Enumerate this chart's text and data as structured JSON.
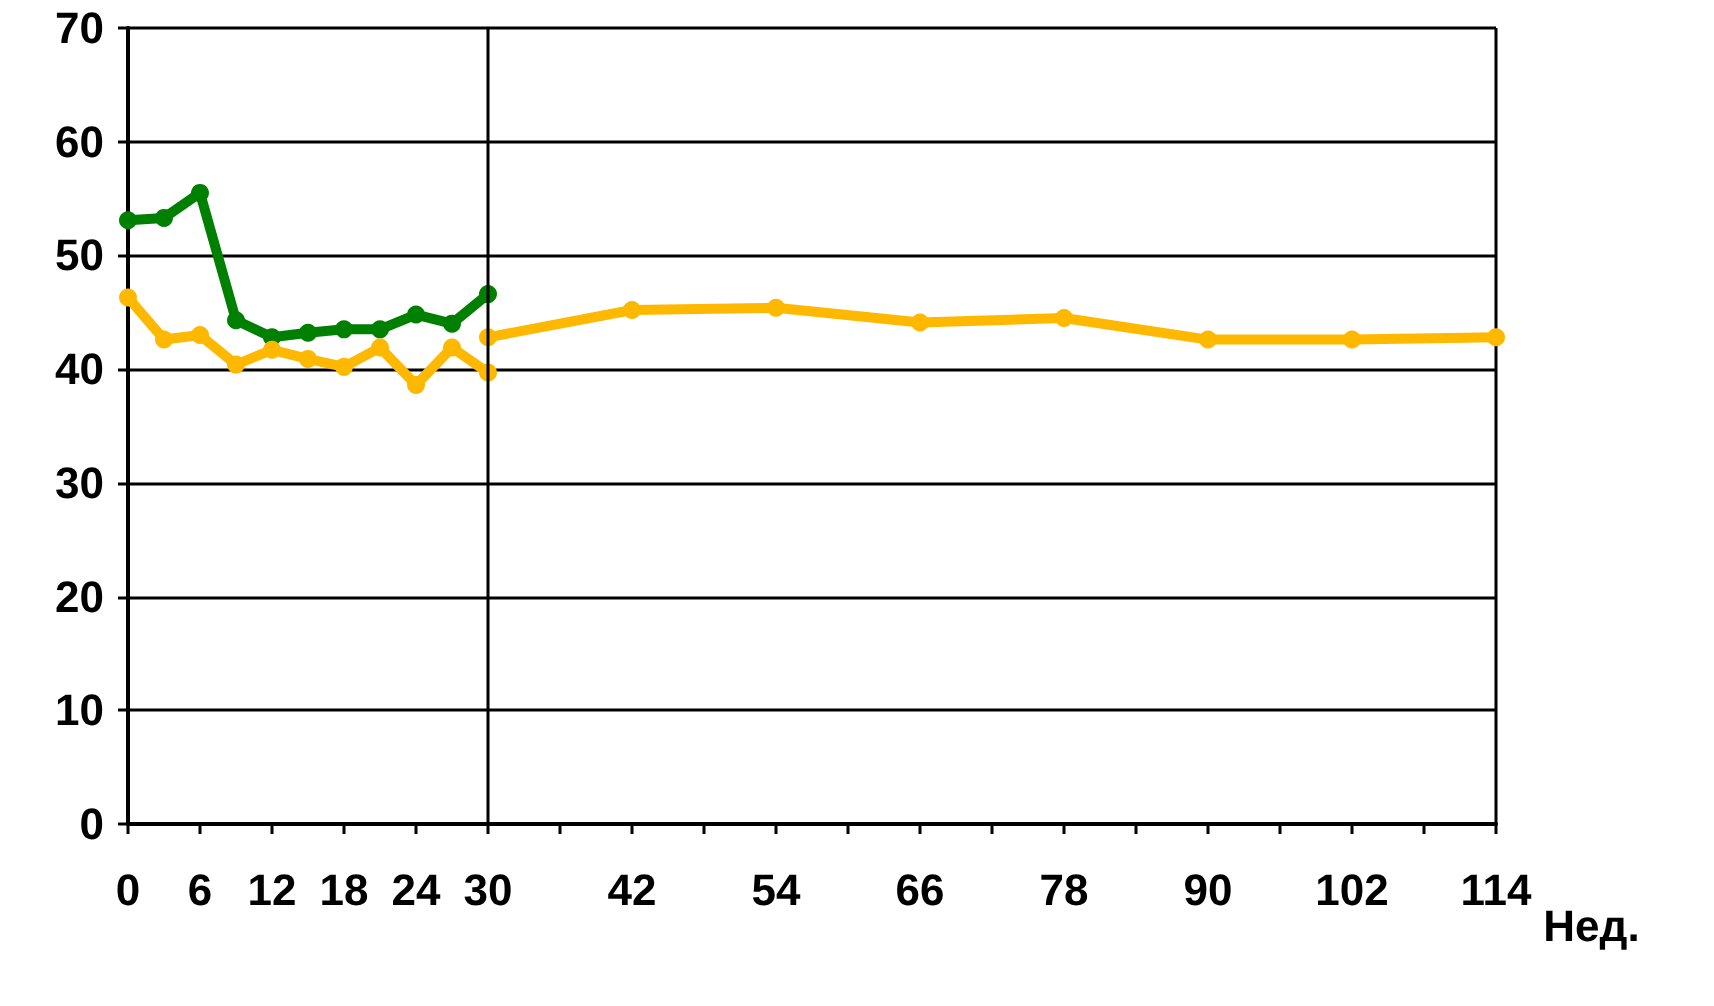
{
  "chart_data": {
    "type": "line",
    "xlabel": "Нед.",
    "series": [
      {
        "color": "#008000",
        "x": [
          0,
          3,
          6,
          9,
          12,
          15,
          18,
          21,
          24,
          27,
          30
        ],
        "values": [
          53.1,
          53.3,
          55.5,
          44.3,
          42.8,
          43.2,
          43.5,
          43.5,
          44.8,
          44.0,
          46.6
        ]
      },
      {
        "color": "#ffb800",
        "x": [
          0,
          3,
          6,
          9,
          12,
          15,
          18,
          21,
          24,
          27,
          30
        ],
        "values": [
          46.3,
          42.6,
          43.0,
          40.4,
          41.7,
          40.9,
          40.2,
          41.9,
          38.6,
          41.9,
          39.7
        ]
      },
      {
        "color": "#ffb800",
        "x": [
          30,
          42,
          54,
          66,
          78,
          90,
          102,
          114
        ],
        "values": [
          42.8,
          45.2,
          45.4,
          44.1,
          44.5,
          42.6,
          42.6,
          42.8
        ]
      }
    ],
    "xlim": [
      0,
      114
    ],
    "xticks": [
      0,
      6,
      12,
      18,
      24,
      30,
      {
        "value": 36,
        "label": null
      },
      42,
      {
        "value": 48,
        "label": null
      },
      54,
      {
        "value": 60,
        "label": null
      },
      66,
      {
        "value": 72,
        "label": null
      },
      78,
      {
        "value": 84,
        "label": null
      },
      90,
      {
        "value": 96,
        "label": null
      },
      102,
      {
        "value": 108,
        "label": null
      },
      114
    ],
    "ylim": [
      0,
      70
    ],
    "yticks": [
      0,
      10,
      20,
      30,
      40,
      50,
      60,
      70
    ],
    "ref_lines": [
      {
        "axis": "x",
        "value": 30,
        "color": "#000000"
      }
    ],
    "grid": "y",
    "marker": "circle",
    "line_style": "solid"
  }
}
